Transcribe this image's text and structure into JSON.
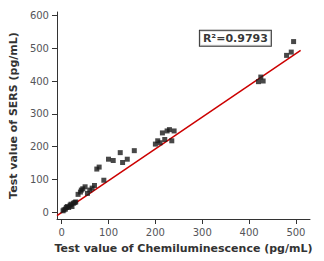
{
  "chart_data": {
    "type": "scatter",
    "xlabel": "Test value of Chemiluminescence (pg/mL)",
    "ylabel": "Test value of SERS (pg/mL)",
    "xlim": [
      -10,
      530
    ],
    "ylim": [
      -20,
      610
    ],
    "xticks": [
      0,
      100,
      200,
      300,
      400,
      500
    ],
    "yticks": [
      0,
      100,
      200,
      300,
      400,
      500,
      600
    ],
    "grid": false,
    "series": [
      {
        "type": "scatter",
        "color": "#1a1a1a",
        "marker": "square",
        "x": [
          3,
          5,
          8,
          10,
          12,
          15,
          18,
          20,
          22,
          25,
          28,
          30,
          35,
          40,
          42,
          45,
          50,
          55,
          60,
          65,
          70,
          75,
          80,
          90,
          100,
          110,
          125,
          130,
          140,
          155,
          200,
          205,
          210,
          215,
          220,
          225,
          230,
          235,
          240,
          420,
          425,
          430,
          480,
          490,
          495
        ],
        "values": [
          5,
          8,
          10,
          15,
          18,
          15,
          22,
          25,
          18,
          28,
          30,
          32,
          55,
          62,
          68,
          72,
          78,
          58,
          68,
          74,
          82,
          132,
          138,
          98,
          162,
          158,
          182,
          152,
          162,
          188,
          208,
          218,
          212,
          242,
          222,
          248,
          252,
          218,
          248,
          398,
          412,
          400,
          478,
          488,
          520
        ]
      },
      {
        "type": "line",
        "color": "#cc0000",
        "line_style": "solid",
        "x": [
          -10,
          510
        ],
        "values": [
          -10,
          493
        ]
      }
    ],
    "annotations": [
      {
        "text": "R²=0.9793",
        "x": 295,
        "y": 530
      }
    ]
  }
}
